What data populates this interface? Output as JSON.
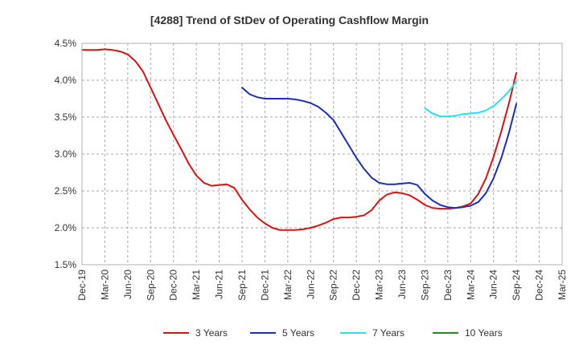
{
  "chart_data": {
    "type": "line",
    "title": "[4288]  Trend of StDev of Operating Cashflow Margin",
    "xlabel": "",
    "ylabel": "",
    "ylim": [
      1.5,
      4.5
    ],
    "yticks": [
      1.5,
      2.0,
      2.5,
      3.0,
      3.5,
      4.0,
      4.5
    ],
    "ytick_labels": [
      "1.5%",
      "2.0%",
      "2.5%",
      "3.0%",
      "3.5%",
      "4.0%",
      "4.5%"
    ],
    "x_range": [
      "2019-12",
      "2025-03"
    ],
    "x_ticks": [
      "Dec-19",
      "Mar-20",
      "Jun-20",
      "Sep-20",
      "Dec-20",
      "Mar-21",
      "Jun-21",
      "Sep-21",
      "Dec-21",
      "Mar-22",
      "Jun-22",
      "Sep-22",
      "Dec-22",
      "Mar-23",
      "Jun-23",
      "Sep-23",
      "Dec-23",
      "Mar-24",
      "Jun-24",
      "Sep-24",
      "Dec-24",
      "Mar-25"
    ],
    "grid": true,
    "legend_position": "bottom",
    "series": [
      {
        "name": "3 Years",
        "color": "#dd1111",
        "x": [
          "2019-12",
          "2020-01",
          "2020-02",
          "2020-03",
          "2020-04",
          "2020-05",
          "2020-06",
          "2020-07",
          "2020-08",
          "2020-09",
          "2020-10",
          "2020-11",
          "2020-12",
          "2021-01",
          "2021-02",
          "2021-03",
          "2021-04",
          "2021-05",
          "2021-06",
          "2021-07",
          "2021-08",
          "2021-09",
          "2021-10",
          "2021-11",
          "2021-12",
          "2022-01",
          "2022-02",
          "2022-03",
          "2022-04",
          "2022-05",
          "2022-06",
          "2022-07",
          "2022-08",
          "2022-09",
          "2022-10",
          "2022-11",
          "2022-12",
          "2023-01",
          "2023-02",
          "2023-03",
          "2023-04",
          "2023-05",
          "2023-06",
          "2023-07",
          "2023-08",
          "2023-09",
          "2023-10",
          "2023-11",
          "2023-12",
          "2024-01",
          "2024-02",
          "2024-03",
          "2024-04",
          "2024-05",
          "2024-06",
          "2024-07",
          "2024-08",
          "2024-09"
        ],
        "values": [
          4.41,
          4.41,
          4.41,
          4.42,
          4.41,
          4.39,
          4.35,
          4.26,
          4.12,
          3.9,
          3.68,
          3.46,
          3.26,
          3.07,
          2.87,
          2.71,
          2.61,
          2.57,
          2.58,
          2.59,
          2.54,
          2.38,
          2.25,
          2.14,
          2.06,
          2.0,
          1.97,
          1.97,
          1.97,
          1.98,
          2.0,
          2.03,
          2.07,
          2.12,
          2.14,
          2.14,
          2.15,
          2.17,
          2.24,
          2.37,
          2.45,
          2.48,
          2.47,
          2.44,
          2.38,
          2.31,
          2.27,
          2.26,
          2.26,
          2.27,
          2.29,
          2.33,
          2.46,
          2.67,
          2.96,
          3.3,
          3.68,
          4.1
        ]
      },
      {
        "name": "5 Years",
        "color": "#1a2fbf",
        "x": [
          "2021-09",
          "2021-10",
          "2021-11",
          "2021-12",
          "2022-01",
          "2022-02",
          "2022-03",
          "2022-04",
          "2022-05",
          "2022-06",
          "2022-07",
          "2022-08",
          "2022-09",
          "2022-10",
          "2022-11",
          "2022-12",
          "2023-01",
          "2023-02",
          "2023-03",
          "2023-04",
          "2023-05",
          "2023-06",
          "2023-07",
          "2023-08",
          "2023-09",
          "2023-10",
          "2023-11",
          "2023-12",
          "2024-01",
          "2024-02",
          "2024-03",
          "2024-04",
          "2024-05",
          "2024-06",
          "2024-07",
          "2024-08",
          "2024-09"
        ],
        "values": [
          3.9,
          3.81,
          3.77,
          3.75,
          3.75,
          3.75,
          3.75,
          3.74,
          3.72,
          3.69,
          3.64,
          3.56,
          3.46,
          3.29,
          3.12,
          2.95,
          2.8,
          2.68,
          2.61,
          2.59,
          2.59,
          2.6,
          2.61,
          2.58,
          2.46,
          2.37,
          2.31,
          2.28,
          2.27,
          2.28,
          2.3,
          2.35,
          2.47,
          2.67,
          2.94,
          3.28,
          3.68
        ]
      },
      {
        "name": "7 Years",
        "color": "#22e4ee",
        "x": [
          "2023-09",
          "2023-10",
          "2023-11",
          "2023-12",
          "2024-01",
          "2024-02",
          "2024-03",
          "2024-04",
          "2024-05",
          "2024-06",
          "2024-07",
          "2024-08",
          "2024-09"
        ],
        "values": [
          3.62,
          3.55,
          3.51,
          3.51,
          3.52,
          3.54,
          3.55,
          3.56,
          3.59,
          3.65,
          3.74,
          3.85,
          3.98
        ]
      },
      {
        "name": "10 Years",
        "color": "#228b22",
        "x": [],
        "values": []
      }
    ]
  }
}
